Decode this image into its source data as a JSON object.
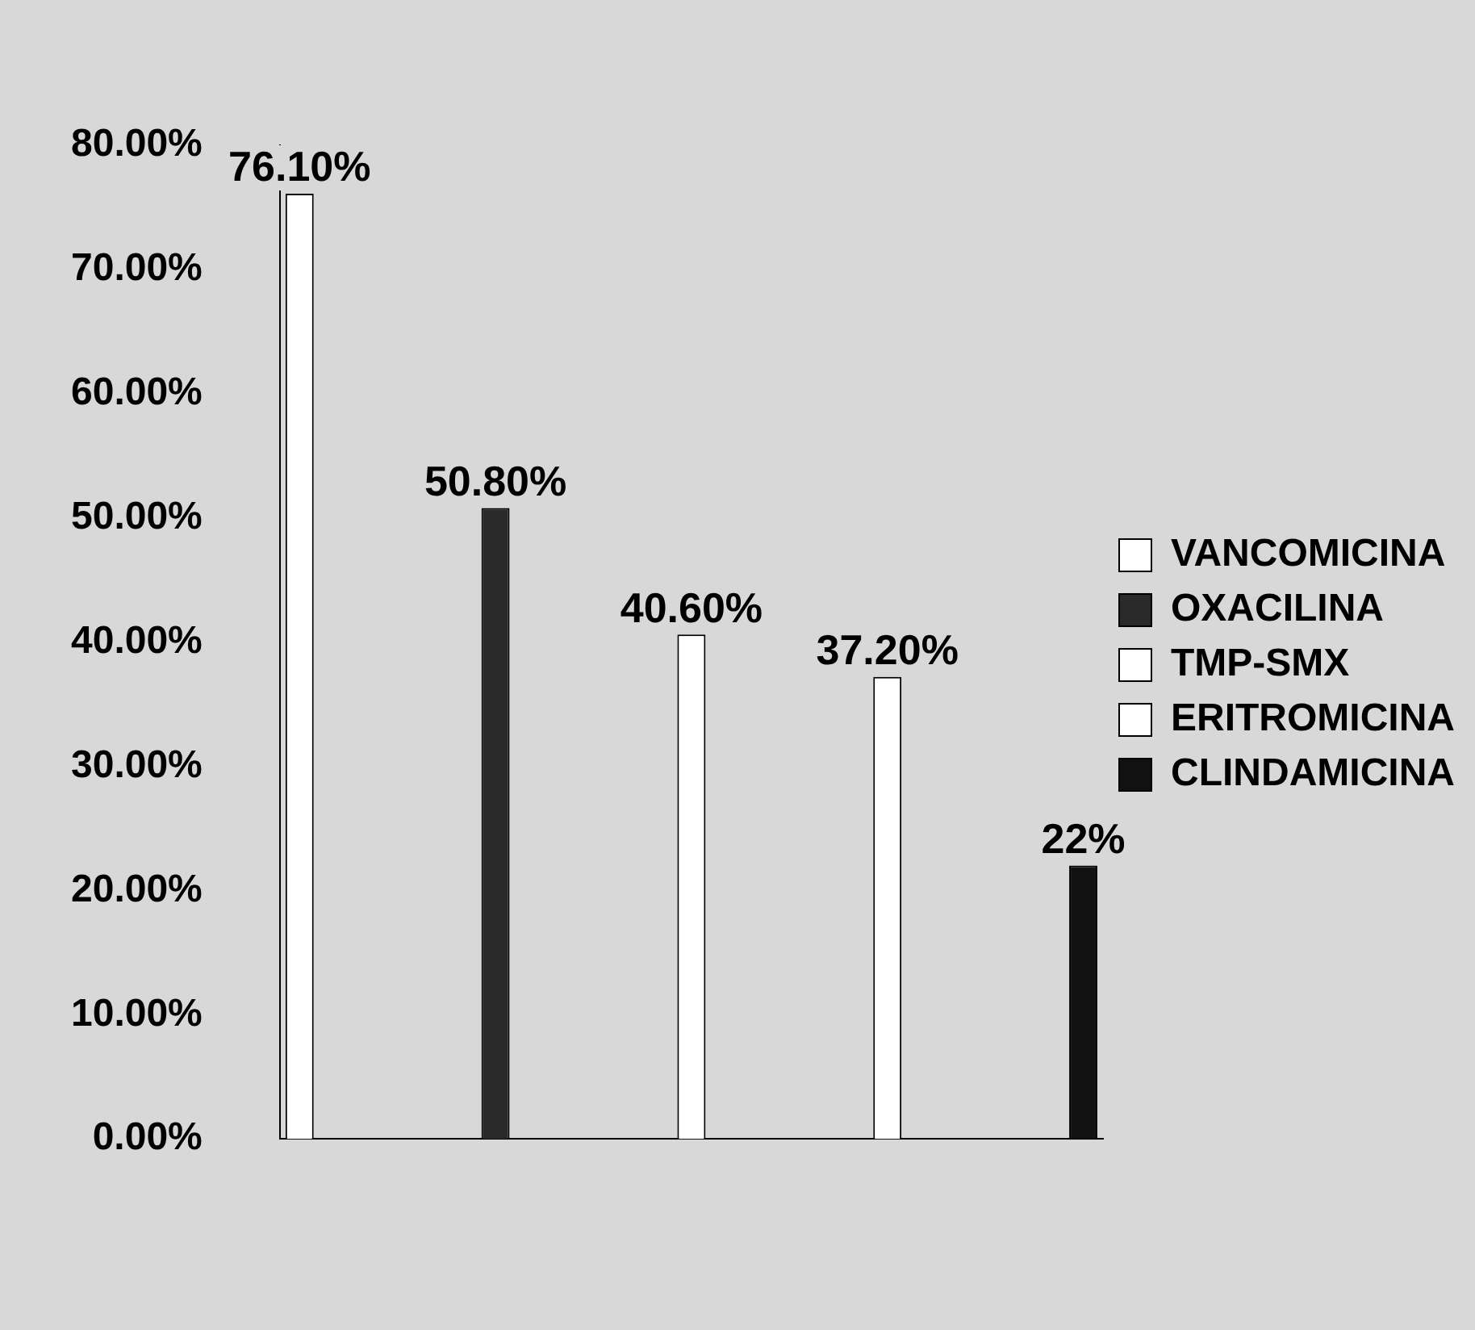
{
  "chart_data": {
    "type": "bar",
    "categories": [
      null,
      null,
      null,
      null,
      null
    ],
    "series": [
      {
        "name": "VANCOMICINA",
        "color": "#ffffff",
        "values": [
          76.1,
          null,
          null,
          null,
          null
        ],
        "value_labels": [
          "76.10%",
          null,
          null,
          null,
          null
        ]
      },
      {
        "name": "OXACILINA",
        "color": "#2a2a2a",
        "values": [
          null,
          50.8,
          null,
          null,
          null
        ],
        "value_labels": [
          null,
          "50.80%",
          null,
          null,
          null
        ]
      },
      {
        "name": "TMP-SMX",
        "color": "#ffffff",
        "values": [
          null,
          null,
          40.6,
          null,
          null
        ],
        "value_labels": [
          null,
          null,
          "40.60%",
          null,
          null
        ]
      },
      {
        "name": "ERITROMICINA",
        "color": "#ffffff",
        "values": [
          null,
          null,
          null,
          37.2,
          null
        ],
        "value_labels": [
          null,
          null,
          null,
          "37.20%",
          null
        ]
      },
      {
        "name": "CLINDAMICINA",
        "color": "#111111",
        "values": [
          null,
          null,
          null,
          null,
          22
        ],
        "value_labels": [
          null,
          null,
          null,
          null,
          "22%"
        ]
      }
    ],
    "ylim": [
      0,
      80
    ],
    "yticks": [
      {
        "value": 0,
        "label": "0.00%"
      },
      {
        "value": 10,
        "label": "10.00%"
      },
      {
        "value": 20,
        "label": "20.00%"
      },
      {
        "value": 30,
        "label": "30.00%"
      },
      {
        "value": 40,
        "label": "40.00%"
      },
      {
        "value": 50,
        "label": "50.00%"
      },
      {
        "value": 60,
        "label": "60.00%"
      },
      {
        "value": 70,
        "label": "70.00%"
      },
      {
        "value": 80,
        "label": "80.00%"
      }
    ],
    "grid": false,
    "legend": "right"
  }
}
